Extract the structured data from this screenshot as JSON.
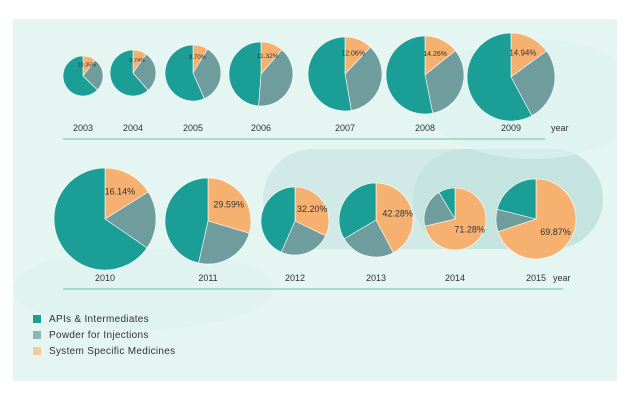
{
  "chart_data": {
    "type": "pie",
    "series_names": [
      "APIs & Intermediates",
      "Powder for Injections",
      "System Specific Medicines"
    ],
    "colors": [
      "#1a9e96",
      "#6f9c9d",
      "#f6b170"
    ],
    "axis_label": "year",
    "pies": [
      {
        "year": "2003",
        "values": [
          null,
          null,
          10.35
        ],
        "label": "10.35%"
      },
      {
        "year": "2004",
        "values": [
          null,
          null,
          9.74
        ],
        "label": "9.74%"
      },
      {
        "year": "2005",
        "values": [
          null,
          null,
          8.7
        ],
        "label": "8.70%"
      },
      {
        "year": "2006",
        "values": [
          null,
          null,
          11.32
        ],
        "label": "11.32%"
      },
      {
        "year": "2007",
        "values": [
          null,
          null,
          12.06
        ],
        "label": "12.06%"
      },
      {
        "year": "2008",
        "values": [
          null,
          null,
          14.26
        ],
        "label": "14.26%"
      },
      {
        "year": "2009",
        "values": [
          null,
          null,
          14.94
        ],
        "label": "14.94%"
      },
      {
        "year": "2010",
        "values": [
          null,
          null,
          16.14
        ],
        "label": "16.14%"
      },
      {
        "year": "2011",
        "values": [
          null,
          null,
          29.59
        ],
        "label": "29.59%"
      },
      {
        "year": "2012",
        "values": [
          null,
          null,
          32.2
        ],
        "label": "32.20%"
      },
      {
        "year": "2013",
        "values": [
          null,
          null,
          42.28
        ],
        "label": "42.28%"
      },
      {
        "year": "2014",
        "values": [
          null,
          null,
          71.28
        ],
        "label": "71.28%"
      },
      {
        "year": "2015",
        "values": [
          null,
          null,
          69.87
        ],
        "label": "69.87%"
      }
    ]
  },
  "legend": [
    {
      "label": "APIs & Intermediates",
      "color": "#1a9e96"
    },
    {
      "label": "Powder for Injections",
      "color": "#8eb5b5"
    },
    {
      "label": "System Specific Medicines",
      "color": "#f6c9a0"
    }
  ]
}
